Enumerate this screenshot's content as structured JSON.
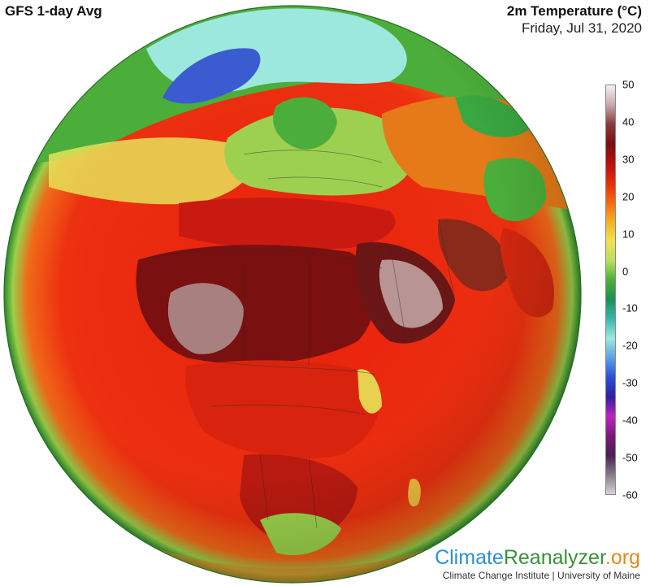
{
  "header": {
    "model_title": "GFS 1-day Avg",
    "variable_title": "2m Temperature (°C)",
    "date": "Friday, Jul 31, 2020"
  },
  "colorbar": {
    "ticks": [
      "50",
      "40",
      "30",
      "20",
      "10",
      "0",
      "-10",
      "-20",
      "-30",
      "-40",
      "-50",
      "-60"
    ],
    "stops": [
      "#f2f0f2",
      "#c9a9ab",
      "#8a3a3a",
      "#7a1010",
      "#b81010",
      "#e82a0a",
      "#f26a10",
      "#f5b020",
      "#f2e050",
      "#b8e060",
      "#4cae3a",
      "#1a8f55",
      "#3ab6b0",
      "#9de8dc",
      "#5aa0e6",
      "#2a4fd6",
      "#3020a0",
      "#c020c0",
      "#7a1a7a",
      "#4a2050",
      "#8a7a88",
      "#d8d0d8"
    ]
  },
  "map_colors": {
    "ocean_hot": "#e8240e",
    "ocean_warm": "#f05018",
    "sahara": "#6a1616",
    "sahara_core": "#a98080",
    "greenland": "#3a5cd0",
    "europe_north": "#4cae3a",
    "arctic": "#9de8dc",
    "limb": "#2a8a2a"
  },
  "brand": {
    "climate": "Climate",
    "reanalyzer": "Reanalyzer",
    "org": ".org",
    "institute": "Climate Change Institute | University of Maine"
  }
}
